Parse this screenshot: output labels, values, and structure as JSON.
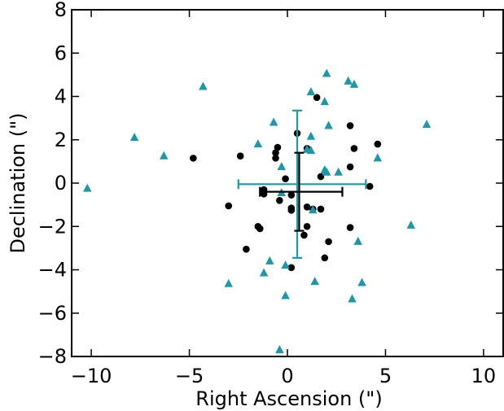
{
  "chart_data": {
    "type": "scatter",
    "title": "",
    "xlabel": "Right Ascension (\")",
    "ylabel": "Declination (\")",
    "xlim": [
      -11,
      11
    ],
    "ylim": [
      -8,
      8
    ],
    "xticks": [
      -10,
      -5,
      0,
      5,
      10
    ],
    "xtick_labels": [
      "−10",
      "−5",
      "0",
      "5",
      "10"
    ],
    "yticks": [
      -8,
      -6,
      -4,
      -2,
      0,
      2,
      4,
      6,
      8
    ],
    "ytick_labels": [
      "−8",
      "−6",
      "−4",
      "−2",
      "0",
      "2",
      "4",
      "6",
      "8"
    ],
    "grid": false,
    "legend": "none",
    "colors": {
      "black": "#000000",
      "teal": "#1a9aa8"
    },
    "series": [
      {
        "marker": "circle",
        "color": "#000000",
        "points": [
          [
            1.5,
            3.95
          ],
          [
            0.5,
            2.3
          ],
          [
            3.2,
            2.65
          ],
          [
            4.6,
            1.8
          ],
          [
            -0.5,
            1.65
          ],
          [
            -0.6,
            1.4
          ],
          [
            -0.6,
            1.15
          ],
          [
            1.0,
            1.6
          ],
          [
            3.4,
            1.6
          ],
          [
            -2.4,
            1.25
          ],
          [
            -4.8,
            1.15
          ],
          [
            -0.1,
            0.2
          ],
          [
            1.7,
            0.3
          ],
          [
            3.2,
            0.75
          ],
          [
            4.2,
            -0.15
          ],
          [
            -1.2,
            -0.3
          ],
          [
            -1.2,
            -0.5
          ],
          [
            0.2,
            -0.55
          ],
          [
            -0.4,
            -0.8
          ],
          [
            -3.0,
            -1.05
          ],
          [
            0.2,
            -1.25
          ],
          [
            0.2,
            -1.15
          ],
          [
            1.0,
            -1.1
          ],
          [
            1.3,
            -1.2
          ],
          [
            1.7,
            -1.2
          ],
          [
            -1.5,
            -2.0
          ],
          [
            -1.4,
            -2.1
          ],
          [
            0.85,
            -2.4
          ],
          [
            1.0,
            -2.0
          ],
          [
            3.2,
            -2.05
          ],
          [
            2.1,
            -2.7
          ],
          [
            -2.1,
            -3.05
          ],
          [
            1.9,
            -3.45
          ],
          [
            0.2,
            -3.9
          ]
        ]
      },
      {
        "marker": "triangle",
        "color": "#1a9aa8",
        "points": [
          [
            2.0,
            5.05
          ],
          [
            3.1,
            4.7
          ],
          [
            3.4,
            4.55
          ],
          [
            -4.3,
            4.45
          ],
          [
            1.2,
            4.2
          ],
          [
            1.9,
            3.75
          ],
          [
            -0.7,
            2.8
          ],
          [
            2.1,
            2.65
          ],
          [
            7.1,
            2.7
          ],
          [
            1.2,
            2.15
          ],
          [
            -7.8,
            2.1
          ],
          [
            -1.5,
            1.8
          ],
          [
            1.0,
            1.55
          ],
          [
            1.2,
            1.5
          ],
          [
            -6.3,
            1.25
          ],
          [
            4.6,
            1.15
          ],
          [
            -0.3,
            0.75
          ],
          [
            1.9,
            0.6
          ],
          [
            2.0,
            0.5
          ],
          [
            2.6,
            0.5
          ],
          [
            -10.2,
            -0.25
          ],
          [
            -0.3,
            -0.45
          ],
          [
            1.3,
            -1.25
          ],
          [
            6.3,
            -1.95
          ],
          [
            3.6,
            -2.7
          ],
          [
            -0.9,
            -3.6
          ],
          [
            -0.1,
            -3.8
          ],
          [
            -1.2,
            -4.15
          ],
          [
            1.4,
            -4.55
          ],
          [
            3.8,
            -4.6
          ],
          [
            -3.0,
            -4.65
          ],
          [
            -0.1,
            -5.2
          ],
          [
            3.3,
            -5.35
          ],
          [
            -0.4,
            -7.7
          ]
        ]
      }
    ],
    "error_bars": [
      {
        "color": "#1a9aa8",
        "center": [
          0.5,
          -0.05
        ],
        "xerr": [
          3.0,
          3.5
        ],
        "yerr": [
          3.4,
          3.4
        ]
      },
      {
        "color": "#000000",
        "center": [
          0.6,
          -0.4
        ],
        "xerr": [
          2.0,
          2.2
        ],
        "yerr": [
          1.8,
          1.8
        ]
      }
    ]
  }
}
